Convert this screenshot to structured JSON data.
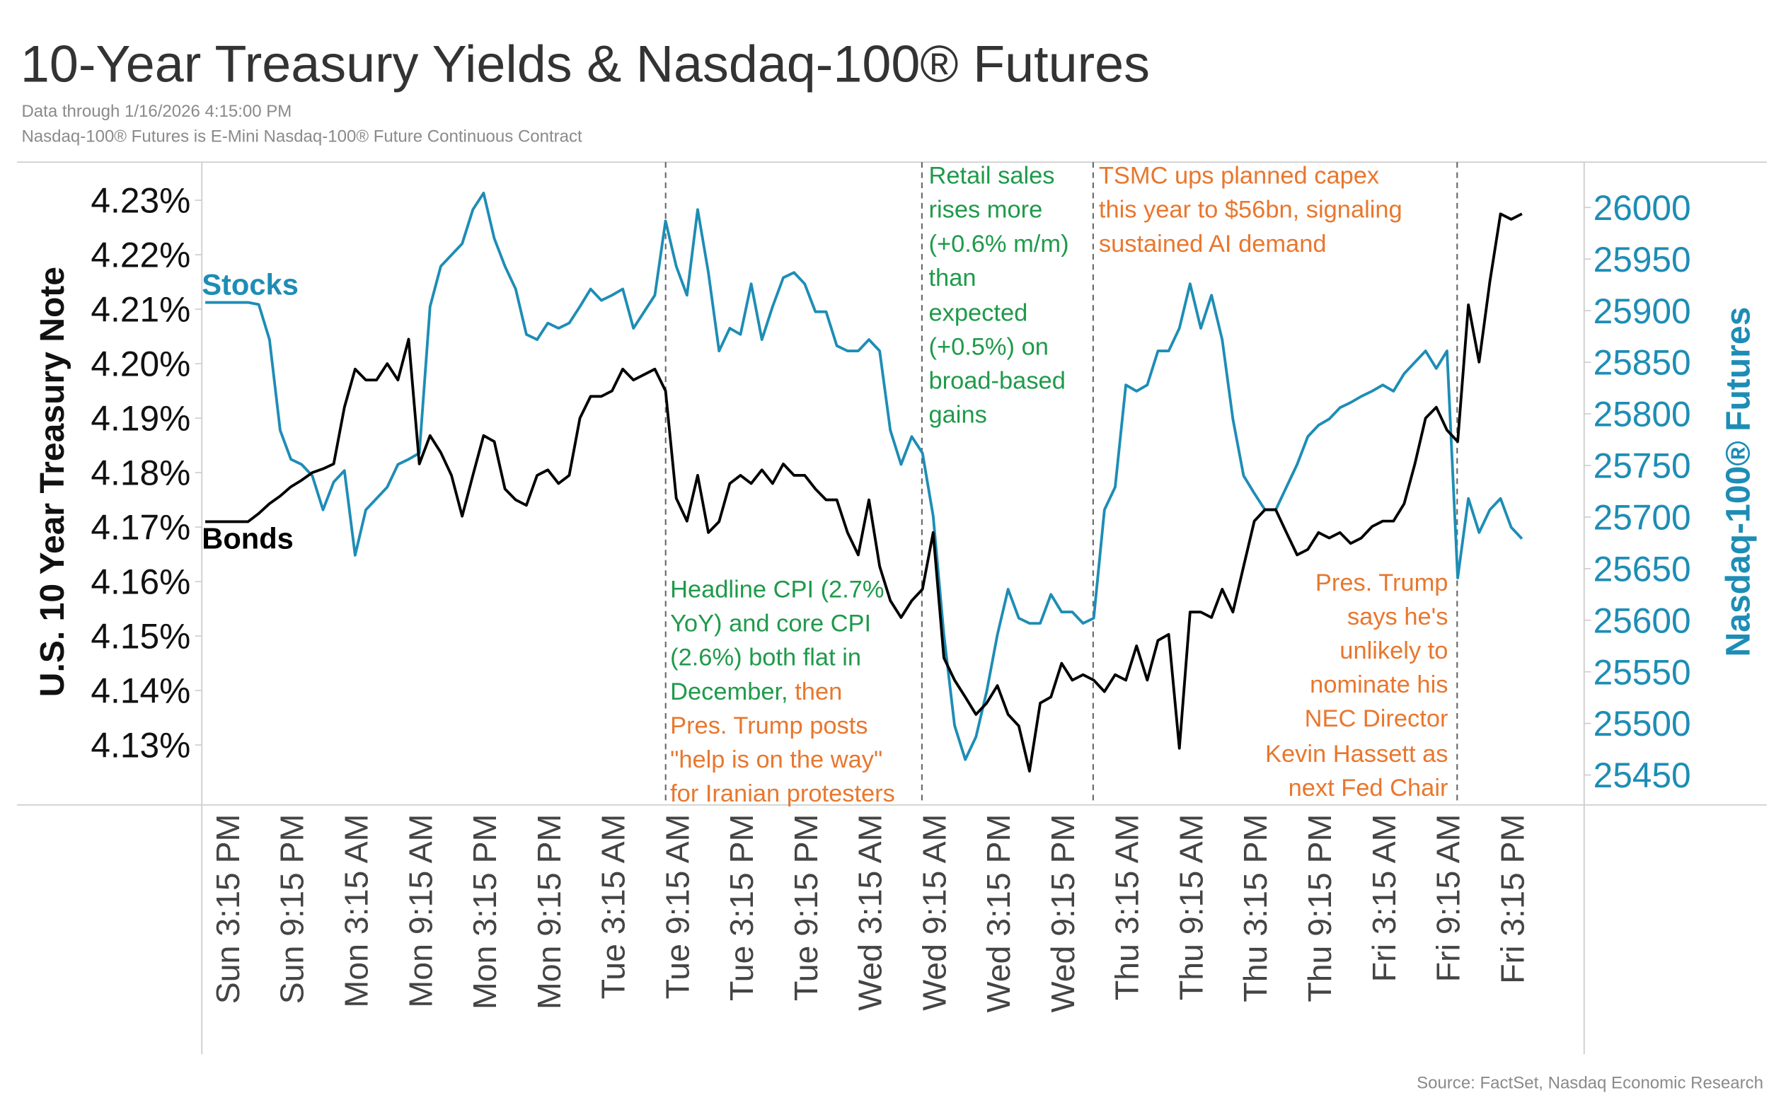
{
  "chart_data": {
    "type": "line",
    "title": "10-Year Treasury Yields & Nasdaq-100® Futures",
    "subtitle": [
      "Data through 1/16/2026 4:15:00 PM",
      "Nasdaq-100® Futures is E-Mini Nasdaq-100® Future Continuous Contract"
    ],
    "source": "Source: FactSet, Nasdaq Economic Research",
    "y_label": "U.S. 10 Year Treasury Note",
    "y2_label": "Nasdaq-100® Futures",
    "categories": [
      null,
      null,
      "Sun 3:15 PM",
      null,
      null,
      null,
      null,
      null,
      "Sun 9:15 PM",
      null,
      null,
      null,
      null,
      null,
      "Mon 3:15 AM",
      null,
      null,
      null,
      null,
      null,
      "Mon 9:15 AM",
      null,
      null,
      null,
      null,
      null,
      "Mon 3:15 PM",
      null,
      null,
      null,
      null,
      null,
      "Mon 9:15 PM",
      null,
      null,
      null,
      null,
      null,
      "Tue 3:15 AM",
      null,
      null,
      null,
      null,
      null,
      "Tue 9:15 AM",
      null,
      null,
      null,
      null,
      null,
      "Tue 3:15 PM",
      null,
      null,
      null,
      null,
      null,
      "Tue 9:15 PM",
      null,
      null,
      null,
      null,
      null,
      "Wed 3:15 AM",
      null,
      null,
      null,
      null,
      null,
      "Wed 9:15 AM",
      null,
      null,
      null,
      null,
      null,
      "Wed 3:15 PM",
      null,
      null,
      null,
      null,
      null,
      "Wed 9:15 PM",
      null,
      null,
      null,
      null,
      null,
      "Thu 3:15 AM",
      null,
      null,
      null,
      null,
      null,
      "Thu 9:15 AM",
      null,
      null,
      null,
      null,
      null,
      "Thu 3:15 PM",
      null,
      null,
      null,
      null,
      null,
      "Thu 9:15 PM",
      null,
      null,
      null,
      null,
      null,
      "Fri 3:15 AM",
      null,
      null,
      null,
      null,
      null,
      "Fri 9:15 AM",
      null,
      null,
      null,
      null,
      null,
      "Fri 3:15 PM",
      null
    ],
    "ylim": [
      4.119,
      4.237
    ],
    "yticks": [
      {
        "value": 4.13,
        "label": "4.13%"
      },
      {
        "value": 4.14,
        "label": "4.14%"
      },
      {
        "value": 4.15,
        "label": "4.15%"
      },
      {
        "value": 4.16,
        "label": "4.16%"
      },
      {
        "value": 4.17,
        "label": "4.17%"
      },
      {
        "value": 4.18,
        "label": "4.18%"
      },
      {
        "value": 4.19,
        "label": "4.19%"
      },
      {
        "value": 4.2,
        "label": "4.20%"
      },
      {
        "value": 4.21,
        "label": "4.21%"
      },
      {
        "value": 4.22,
        "label": "4.22%"
      },
      {
        "value": 4.23,
        "label": "4.23%"
      }
    ],
    "y2lim": [
      25421,
      26044
    ],
    "y2ticks": [
      25450,
      25500,
      25550,
      25600,
      25650,
      25700,
      25750,
      25800,
      25850,
      25900,
      25950,
      26000
    ],
    "series": [
      {
        "name": "Stocks",
        "color": "#1d8db5",
        "axis": "y2",
        "values": [
          25908,
          25908,
          25908,
          25908,
          25908,
          25906,
          25872,
          25784,
          25756,
          25751,
          25740,
          25707,
          25734,
          25745,
          25663,
          25707,
          25718,
          25729,
          25751,
          25756,
          25762,
          25904,
          25943,
          25954,
          25965,
          25998,
          26014,
          25970,
          25943,
          25921,
          25877,
          25872,
          25888,
          25883,
          25888,
          25904,
          25921,
          25910,
          25915,
          25921,
          25883,
          25899,
          25915,
          25987,
          25943,
          25915,
          25998,
          25937,
          25861,
          25883,
          25877,
          25926,
          25872,
          25904,
          25932,
          25937,
          25926,
          25899,
          25899,
          25866,
          25861,
          25861,
          25872,
          25861,
          25784,
          25751,
          25778,
          25762,
          25701,
          25586,
          25498,
          25465,
          25487,
          25531,
          25586,
          25630,
          25602,
          25597,
          25597,
          25625,
          25608,
          25608,
          25597,
          25602,
          25707,
          25729,
          25828,
          25822,
          25828,
          25861,
          25861,
          25883,
          25926,
          25883,
          25915,
          25872,
          25795,
          25740,
          25723,
          25707,
          25707,
          25729,
          25751,
          25778,
          25789,
          25795,
          25806,
          25811,
          25817,
          25822,
          25828,
          25822,
          25839,
          25850,
          25861,
          25844,
          25861,
          25641,
          25718,
          25685,
          25707,
          25718,
          25690,
          25679
        ]
      },
      {
        "name": "Bonds",
        "color": "#000000",
        "values": [
          4.171,
          4.171,
          4.171,
          4.171,
          4.171,
          4.1725,
          4.1743,
          4.1757,
          4.1774,
          4.1786,
          4.18,
          4.1807,
          4.1816,
          4.192,
          4.199,
          4.197,
          4.197,
          4.2,
          4.197,
          4.2045,
          4.1816,
          4.1868,
          4.1837,
          4.1795,
          4.172,
          4.1795,
          4.1868,
          4.1857,
          4.177,
          4.175,
          4.174,
          4.1795,
          4.1805,
          4.178,
          4.1795,
          4.19,
          4.194,
          4.194,
          4.195,
          4.199,
          4.197,
          4.198,
          4.199,
          4.195,
          4.1753,
          4.1711,
          4.1795,
          4.169,
          4.171,
          4.178,
          4.1795,
          4.178,
          4.1805,
          4.178,
          4.1816,
          4.1795,
          4.1795,
          4.177,
          4.175,
          4.175,
          4.169,
          4.1649,
          4.175,
          4.1628,
          4.1565,
          4.1534,
          4.1565,
          4.1586,
          4.169,
          4.146,
          4.1419,
          4.1388,
          4.1356,
          4.1377,
          4.1409,
          4.1356,
          4.1335,
          4.1252,
          4.1377,
          4.1388,
          4.145,
          4.1419,
          4.1429,
          4.1419,
          4.1398,
          4.1429,
          4.1419,
          4.1482,
          4.1419,
          4.1492,
          4.1503,
          4.1294,
          4.1544,
          4.1544,
          4.1534,
          4.1586,
          4.1544,
          4.1628,
          4.1711,
          4.1732,
          4.1732,
          4.169,
          4.1649,
          4.1659,
          4.169,
          4.168,
          4.169,
          4.167,
          4.168,
          4.1701,
          4.1711,
          4.1711,
          4.1743,
          4.1816,
          4.19,
          4.192,
          4.1878,
          4.1857,
          4.2108,
          4.2003,
          4.215,
          4.2275,
          4.2265,
          4.2275
        ]
      }
    ],
    "annotations": [
      {
        "lines": [
          "Retail sales",
          "rises more",
          "(+0.6% m/m)",
          "than",
          "expected",
          "(+0.5%) on",
          "broad-based",
          "gains"
        ]
      },
      {
        "lines": [
          "TSMC ups planned capex",
          "this year to $56bn, signaling",
          "sustained AI demand"
        ]
      },
      {
        "lines": [
          "Headline CPI (2.7%",
          "YoY) and core CPI",
          "(2.6%) both flat in",
          "December,"
        ]
      },
      {
        "lines": [
          "then",
          "Pres. Trump posts",
          "\"help is on the way\"",
          "for Iranian protesters"
        ]
      },
      {
        "lines": [
          "Pres. Trump",
          "says he's",
          "unlikely to",
          "nominate his",
          "NEC Director",
          "Kevin Hassett as",
          "next Fed Chair"
        ]
      }
    ]
  }
}
